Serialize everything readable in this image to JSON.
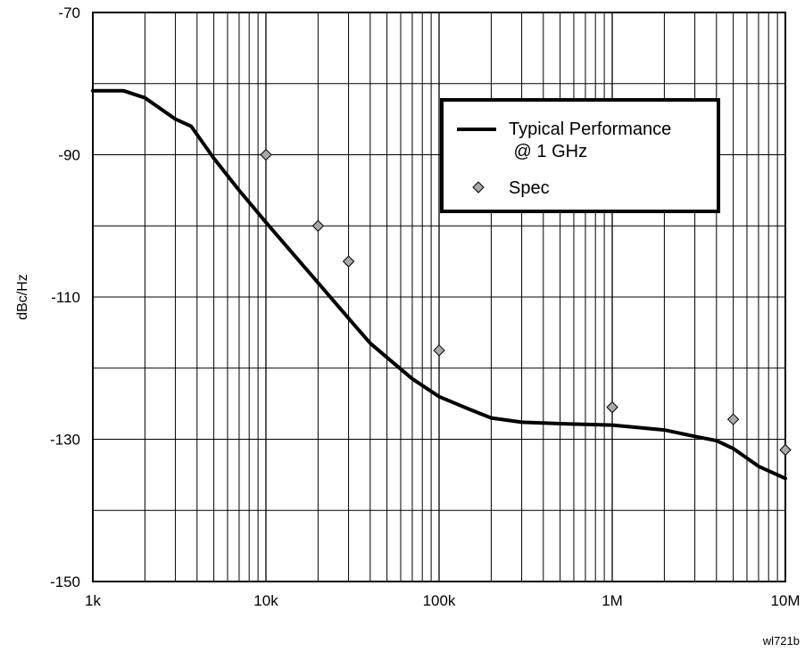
{
  "chart_data": {
    "type": "line",
    "title": "",
    "xlabel": "",
    "ylabel": "dBc/Hz",
    "x_scale": "log",
    "xlim": [
      1000,
      10000000
    ],
    "ylim": [
      -150,
      -70
    ],
    "x_ticks": [
      {
        "value": 1000,
        "label": "1k"
      },
      {
        "value": 10000,
        "label": "10k"
      },
      {
        "value": 100000,
        "label": "100k"
      },
      {
        "value": 1000000,
        "label": "1M"
      },
      {
        "value": 10000000,
        "label": "10M"
      }
    ],
    "y_ticks": [
      {
        "value": -70,
        "label": "-70"
      },
      {
        "value": -90,
        "label": "-90"
      },
      {
        "value": -110,
        "label": "-110"
      },
      {
        "value": -130,
        "label": "-130"
      },
      {
        "value": -150,
        "label": "-150"
      }
    ],
    "grid": true,
    "legend_position": "top-right",
    "series": [
      {
        "name": "Typical Performance\n @ 1 GHz",
        "type": "line",
        "color": "#000000",
        "x": [
          1000,
          1500,
          2000,
          3000,
          3700,
          5000,
          7000,
          10000,
          15000,
          20000,
          30000,
          40000,
          50000,
          70000,
          100000,
          150000,
          200000,
          300000,
          500000,
          1000000,
          2000000,
          3000000,
          4000000,
          5000000,
          7000000,
          10000000
        ],
        "y": [
          -81,
          -81,
          -82,
          -85,
          -86,
          -90.5,
          -95,
          -99.5,
          -104.5,
          -108,
          -113,
          -116.5,
          -118.5,
          -121.5,
          -124,
          -125.8,
          -127,
          -127.6,
          -127.8,
          -128,
          -128.7,
          -129.6,
          -130.2,
          -131.3,
          -133.8,
          -135.5
        ]
      },
      {
        "name": "Spec",
        "type": "scatter",
        "marker": "diamond",
        "color": "#a8a8a8",
        "x": [
          10000,
          20000,
          30000,
          100000,
          1000000,
          5000000,
          10000000
        ],
        "y": [
          -90,
          -100,
          -105,
          -117.5,
          -125.5,
          -127.2,
          -131.5
        ]
      }
    ],
    "annotation": "wl721b"
  }
}
